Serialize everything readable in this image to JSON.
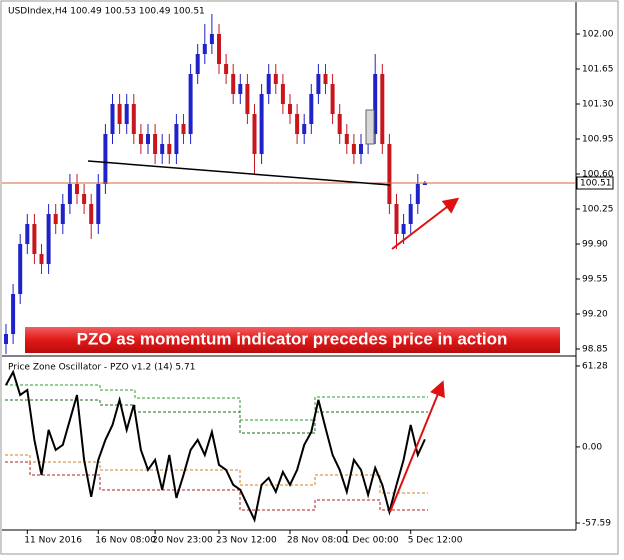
{
  "chart_data": {
    "type": "candlestick",
    "header": "USDIndex,H4  100.49 100.53 100.49 100.51",
    "annotation": "PZO as momentum indicator precedes price in action",
    "categories": [
      null,
      null,
      null,
      "11 Nov 2016",
      null,
      null,
      null,
      null,
      null,
      null,
      null,
      null,
      null,
      "16 Nov 08:00",
      null,
      null,
      null,
      null,
      null,
      null,
      null,
      "20 Nov 23:00",
      null,
      null,
      null,
      null,
      null,
      null,
      null,
      null,
      "23 Nov 12:00",
      null,
      null,
      null,
      null,
      null,
      null,
      null,
      null,
      null,
      "28 Nov 08:00",
      null,
      null,
      null,
      null,
      null,
      null,
      null,
      "1 Dec 00:00",
      null,
      null,
      null,
      null,
      null,
      null,
      null,
      null,
      "5 Dec 12:00",
      null,
      null
    ],
    "open": [
      98.9,
      99.0,
      99.4,
      99.9,
      100.1,
      99.8,
      99.7,
      100.2,
      100.1,
      100.3,
      100.5,
      100.4,
      100.3,
      100.1,
      100.5,
      101.0,
      101.3,
      101.1,
      101.3,
      101.0,
      100.9,
      101.0,
      100.8,
      100.9,
      100.8,
      101.1,
      101.0,
      101.6,
      101.8,
      101.9,
      102.0,
      101.7,
      101.6,
      101.4,
      101.5,
      101.2,
      100.8,
      101.4,
      101.6,
      101.5,
      101.3,
      101.2,
      101.0,
      101.1,
      101.4,
      101.6,
      101.5,
      101.2,
      101.0,
      100.9,
      100.8,
      100.9,
      101.0,
      101.6,
      100.9,
      100.3,
      100.0,
      100.1,
      100.3,
      100.49
    ],
    "high": [
      99.1,
      99.5,
      100.0,
      100.2,
      100.2,
      99.9,
      100.3,
      100.3,
      100.4,
      100.6,
      100.6,
      100.5,
      100.4,
      100.6,
      101.1,
      101.4,
      101.4,
      101.4,
      101.4,
      101.1,
      101.1,
      101.1,
      101.0,
      101.0,
      101.2,
      101.2,
      101.7,
      101.9,
      102.1,
      102.2,
      102.1,
      101.8,
      101.7,
      101.6,
      101.6,
      101.3,
      101.5,
      101.7,
      101.7,
      101.6,
      101.4,
      101.3,
      101.2,
      101.5,
      101.7,
      101.7,
      101.6,
      101.3,
      101.1,
      101.0,
      101.0,
      101.1,
      101.8,
      101.7,
      101.0,
      100.4,
      100.2,
      100.4,
      100.6,
      100.53
    ],
    "low": [
      98.8,
      98.9,
      99.3,
      99.8,
      99.7,
      99.6,
      99.6,
      100.0,
      100.0,
      100.2,
      100.3,
      100.2,
      99.95,
      100.0,
      100.4,
      100.9,
      101.0,
      101.0,
      100.9,
      100.8,
      100.8,
      100.7,
      100.7,
      100.7,
      100.7,
      100.9,
      100.9,
      101.5,
      101.7,
      101.8,
      101.6,
      101.5,
      101.3,
      101.3,
      101.1,
      100.6,
      100.7,
      101.3,
      101.4,
      101.2,
      101.1,
      100.9,
      100.9,
      101.0,
      101.3,
      101.4,
      101.1,
      100.9,
      100.8,
      100.7,
      100.7,
      100.8,
      100.9,
      100.8,
      100.2,
      99.85,
      99.9,
      100.0,
      100.2,
      100.49
    ],
    "close": [
      99.0,
      99.4,
      99.9,
      100.1,
      99.8,
      99.7,
      100.2,
      100.1,
      100.3,
      100.5,
      100.4,
      100.3,
      100.1,
      100.5,
      101.0,
      101.3,
      101.1,
      101.3,
      101.0,
      100.9,
      101.0,
      100.8,
      100.9,
      100.8,
      101.1,
      101.0,
      101.6,
      101.8,
      101.9,
      102.0,
      101.7,
      101.6,
      101.4,
      101.5,
      101.2,
      100.8,
      101.4,
      101.6,
      101.5,
      101.3,
      101.2,
      101.0,
      101.1,
      101.4,
      101.6,
      101.5,
      101.2,
      101.0,
      100.9,
      100.8,
      100.9,
      101.0,
      101.6,
      100.9,
      100.3,
      100.0,
      100.1,
      100.3,
      100.5,
      100.51
    ],
    "up_color": "#1e22c8",
    "down_color": "#c8161d",
    "ylim": [
      98.79,
      102.31
    ],
    "yticks": [
      {
        "value": 102,
        "label": "102.00"
      },
      101.65,
      {
        "value": 101.3,
        "label": "101.30"
      },
      100.95,
      {
        "value": 100.6,
        "label": "100.60"
      },
      100.25,
      {
        "value": 99.9,
        "label": "99.90"
      },
      99.55,
      {
        "value": 99.2,
        "label": "99.20"
      },
      98.85
    ],
    "oscillator": {
      "type": "line",
      "title": "Price Zone Oscillator - PZO v1.2 (14) 5.71",
      "color": "#000000",
      "values": [
        46.9,
        56.7,
        39.3,
        43.1,
        5.3,
        -21.2,
        12.9,
        -2.3,
        1.5,
        20.4,
        39.3,
        -9.8,
        -37.8,
        -9.8,
        5.3,
        16.6,
        35.6,
        12.9,
        31.8,
        -2.3,
        -17.4,
        -9.8,
        -32.5,
        -6.1,
        -38.6,
        -21.2,
        -2.3,
        5.3,
        -6.1,
        11.3,
        -13.6,
        -17.4,
        -28.7,
        -32.5,
        -43.9,
        -55.2,
        -28.7,
        -23.5,
        -34.0,
        -18.9,
        -28.7,
        -17.4,
        1.5,
        11.3,
        35.6,
        14.4,
        -6.1,
        -17.4,
        -34.0,
        -9.8,
        -17.4,
        -36.3,
        -15.9,
        -28.7,
        -49.2,
        -28.7,
        -9.8,
        16.6,
        -6.1,
        5.71
      ],
      "ylim": [
        -62.9,
        67.3
      ],
      "yticks": [
        61.28,
        {
          "value": 0,
          "label": "0.00"
        },
        -57.59
      ]
    }
  }
}
